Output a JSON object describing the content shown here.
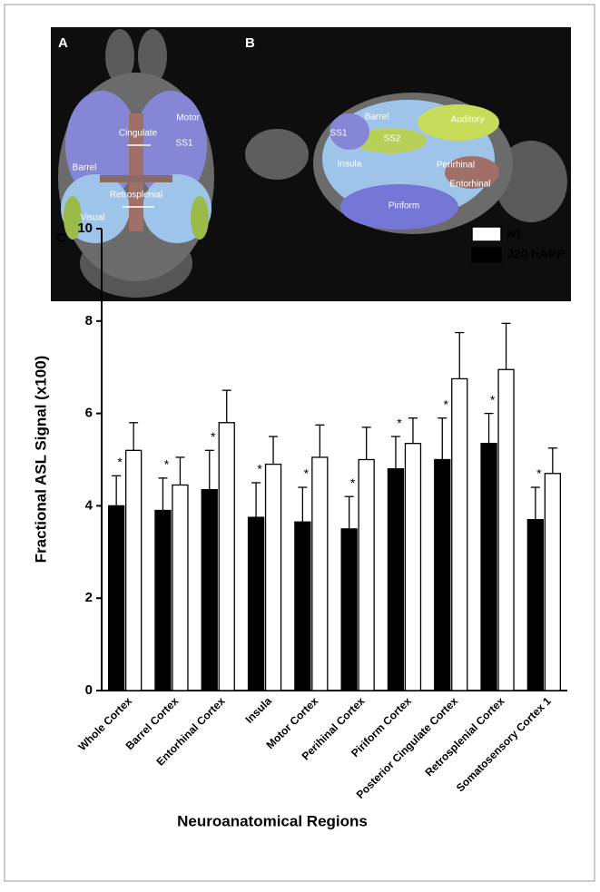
{
  "figure": {
    "panel_a": {
      "label": "A",
      "regions": [
        "Motor",
        "Cingulate",
        "SS1",
        "Barrel",
        "Retrosplenial",
        "Visual"
      ]
    },
    "panel_b": {
      "label": "B",
      "regions": [
        "Barrel",
        "Auditory",
        "SS1",
        "SS2",
        "Insula",
        "Perirhinal",
        "Entorhinal",
        "Piriform"
      ]
    }
  },
  "chart_data": {
    "type": "bar",
    "panel_label": "C",
    "y_label": "Fractional ASL Signal (x100)",
    "x_label": "Neuroanatomical Regions",
    "categories": [
      "Whole Cortex",
      "Barrel Cortex",
      "Entorhinal Cortex",
      "Insula",
      "Motor Cortex",
      "Perihinal Cortex",
      "Piriform Cortex",
      "Posterior Cingulate Cortex",
      "Retrosplenial Cortex",
      "Somatosensory Cortex 1"
    ],
    "series": [
      {
        "name": "J20 hAPP",
        "color": "#000000",
        "values": [
          4.0,
          3.9,
          4.35,
          3.75,
          3.65,
          3.5,
          4.8,
          5.0,
          5.35,
          3.7
        ],
        "errors": [
          0.65,
          0.7,
          0.85,
          0.75,
          0.75,
          0.7,
          0.7,
          0.9,
          0.65,
          0.7
        ]
      },
      {
        "name": "wt",
        "color": "#ffffff",
        "values": [
          5.2,
          4.45,
          5.8,
          4.9,
          5.05,
          5.0,
          5.35,
          6.75,
          6.95,
          4.7
        ],
        "errors": [
          0.6,
          0.6,
          0.7,
          0.6,
          0.7,
          0.7,
          0.55,
          1.0,
          1.0,
          0.55
        ]
      }
    ],
    "significance": [
      "*",
      "*",
      "*",
      "*",
      "*",
      "*",
      "*",
      "*",
      "*",
      "*"
    ],
    "ylim": [
      0,
      10
    ],
    "yticks": [
      0,
      2,
      4,
      6,
      8,
      10
    ],
    "grid": false
  }
}
